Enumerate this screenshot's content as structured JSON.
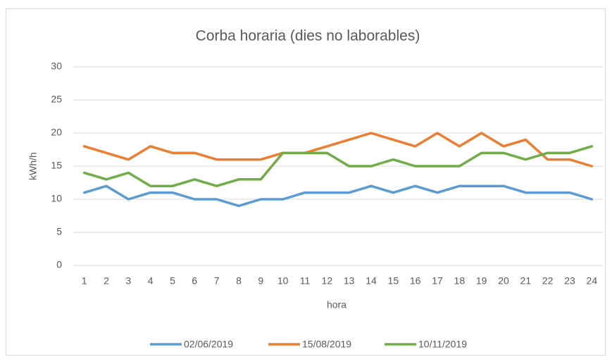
{
  "chart_data": {
    "type": "line",
    "title": "Corba horaria (dies no laborables)",
    "x_label": "hora",
    "y_label": "kWh/h",
    "categories": [
      1,
      2,
      3,
      4,
      5,
      6,
      7,
      8,
      9,
      10,
      11,
      12,
      13,
      14,
      15,
      16,
      17,
      18,
      19,
      20,
      21,
      22,
      23,
      24
    ],
    "series": [
      {
        "name": "02/06/2019",
        "color": "#5b9bd5",
        "values": [
          11,
          12,
          10,
          11,
          11,
          10,
          10,
          9,
          10,
          10,
          11,
          11,
          11,
          12,
          11,
          12,
          11,
          12,
          12,
          12,
          11,
          11,
          11,
          10
        ]
      },
      {
        "name": "15/08/2019",
        "color": "#ed7d31",
        "values": [
          18,
          17,
          16,
          18,
          17,
          17,
          16,
          16,
          16,
          17,
          17,
          18,
          19,
          20,
          19,
          18,
          20,
          18,
          20,
          18,
          19,
          16,
          16,
          15
        ]
      },
      {
        "name": "10/11/2019",
        "color": "#70ad47",
        "values": [
          14,
          13,
          14,
          12,
          12,
          13,
          12,
          13,
          13,
          17,
          17,
          17,
          15,
          15,
          16,
          15,
          15,
          15,
          17,
          17,
          16,
          17,
          17,
          18
        ]
      }
    ],
    "ylim": [
      0,
      30
    ],
    "yticks": [
      0,
      5,
      10,
      15,
      20,
      25,
      30
    ],
    "grid": true,
    "legend": "bottom"
  }
}
